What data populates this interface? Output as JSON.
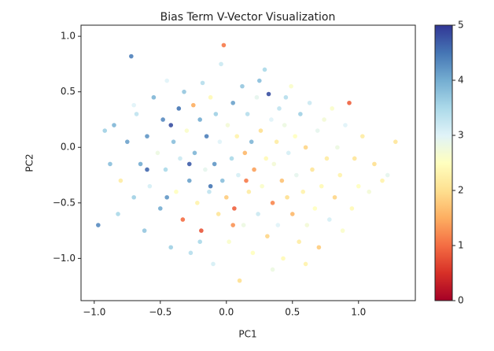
{
  "chart_data": {
    "type": "scatter",
    "title": "Bias Term V-Vector Visualization",
    "x_label": "PC1",
    "y_label": "PC2",
    "xlim": [
      -1.1,
      1.43
    ],
    "ylim": [
      -1.38,
      1.1
    ],
    "xticks": [
      {
        "value": -1.0,
        "label": "−1.0"
      },
      {
        "value": -0.5,
        "label": "−0.5"
      },
      {
        "value": 0,
        "label": "0.0"
      },
      0.5,
      {
        "value": 1.0,
        "label": "1.0"
      }
    ],
    "yticks": [
      {
        "value": -1.0,
        "label": "−1.0"
      },
      {
        "value": -0.5,
        "label": "−0.5"
      },
      {
        "value": 0,
        "label": "0.0"
      },
      0.5,
      {
        "value": 1.0,
        "label": "1.0"
      }
    ],
    "colormap": [
      "#a50026",
      "#d73027",
      "#f46d43",
      "#fdae61",
      "#fee090",
      "#ffffbf",
      "#e0f3f8",
      "#abd9e9",
      "#74add1",
      "#4575b4",
      "#313695"
    ],
    "clim": [
      0,
      5
    ],
    "cticks": [
      0,
      1,
      2,
      3,
      4,
      5
    ],
    "x": [
      -0.97,
      -0.88,
      -0.85,
      -0.82,
      -0.8,
      -0.75,
      -0.72,
      -0.7,
      -0.68,
      -0.65,
      -0.62,
      -0.6,
      -0.58,
      -0.55,
      -0.52,
      -0.5,
      -0.48,
      -0.46,
      -0.45,
      -0.42,
      -0.4,
      -0.38,
      -0.36,
      -0.35,
      -0.33,
      -0.32,
      -0.3,
      -0.28,
      -0.27,
      -0.25,
      -0.24,
      -0.22,
      -0.2,
      -0.19,
      -0.18,
      -0.16,
      -0.15,
      -0.13,
      -0.12,
      -0.1,
      -0.09,
      -0.08,
      -0.06,
      -0.05,
      -0.04,
      -0.03,
      -0.02,
      0.0,
      0.01,
      0.02,
      0.04,
      0.05,
      0.06,
      0.08,
      0.09,
      0.1,
      0.12,
      0.13,
      0.14,
      0.16,
      0.17,
      0.19,
      0.2,
      0.21,
      0.23,
      0.24,
      0.26,
      0.27,
      0.29,
      0.3,
      0.31,
      0.32,
      0.34,
      0.35,
      0.36,
      0.38,
      0.39,
      0.4,
      0.42,
      0.43,
      0.44,
      0.46,
      0.47,
      0.49,
      0.5,
      0.52,
      0.53,
      0.55,
      0.56,
      0.58,
      0.6,
      0.61,
      0.63,
      0.65,
      0.67,
      0.69,
      0.7,
      0.72,
      0.74,
      0.76,
      0.78,
      0.8,
      0.82,
      0.84,
      0.86,
      0.88,
      0.9,
      0.93,
      0.95,
      0.97,
      1.0,
      1.03,
      1.08,
      1.12,
      1.18,
      1.22,
      1.28,
      -0.92,
      -0.6,
      -0.42,
      -0.28,
      -0.12,
      0.15,
      0.05,
      -0.45,
      0.25,
      0.45,
      -0.7,
      0.35,
      -0.2,
      0.6
    ],
    "values": [
      -0.7,
      -0.15,
      0.2,
      -0.6,
      -0.3,
      0.05,
      0.82,
      -0.45,
      0.3,
      -0.15,
      -0.75,
      0.1,
      -0.35,
      0.45,
      -0.05,
      -0.55,
      0.25,
      -0.2,
      0.6,
      -0.9,
      0.05,
      -0.4,
      0.35,
      -0.1,
      -0.65,
      0.5,
      0.15,
      -0.3,
      -0.95,
      0.38,
      -0.05,
      -0.5,
      0.25,
      -0.75,
      0.58,
      -0.2,
      0.1,
      -0.4,
      0.45,
      -1.05,
      -0.15,
      0.3,
      -0.6,
      0.05,
      0.75,
      -0.3,
      0.92,
      -0.45,
      0.2,
      -0.85,
      -0.1,
      0.4,
      -0.55,
      0.1,
      -0.25,
      -1.2,
      0.55,
      -0.7,
      -0.05,
      0.3,
      -0.4,
      0.05,
      -0.95,
      -0.2,
      0.45,
      -0.6,
      0.15,
      -0.35,
      0.7,
      -0.1,
      -0.8,
      0.48,
      0.25,
      -0.5,
      -0.15,
      0.05,
      -0.7,
      0.35,
      -0.3,
      -1.0,
      0.2,
      -0.45,
      -0.05,
      0.55,
      -0.6,
      0.1,
      -0.25,
      -0.85,
      0.3,
      -0.4,
      0.0,
      -0.7,
      0.4,
      -0.2,
      -0.55,
      0.15,
      -0.9,
      -0.35,
      0.25,
      -0.1,
      -0.65,
      0.35,
      -0.45,
      0.0,
      -0.25,
      -0.75,
      0.2,
      0.4,
      -0.55,
      -0.1,
      -0.35,
      0.1,
      -0.4,
      -0.15,
      -0.3,
      -0.25,
      0.05,
      0.15,
      -0.2,
      0.2,
      -0.15,
      -0.35,
      -0.3,
      -0.7,
      -0.45,
      0.6,
      0.45,
      0.38,
      -1.1,
      -0.85,
      -1.05
    ],
    "color_values": [
      4.3,
      3.8,
      3.9,
      3.5,
      2.2,
      4.1,
      4.4,
      3.6,
      3.3,
      4.0,
      3.7,
      4.2,
      3.1,
      3.9,
      2.8,
      4.0,
      4.3,
      3.5,
      3.0,
      3.6,
      3.8,
      2.5,
      4.5,
      3.2,
      1.0,
      3.7,
      2.6,
      4.1,
      3.4,
      1.5,
      3.9,
      2.3,
      4.0,
      0.8,
      3.4,
      2.9,
      4.4,
      3.3,
      2.4,
      3.1,
      4.2,
      3.6,
      2.1,
      3.0,
      3.2,
      3.8,
      1.1,
      1.8,
      2.7,
      2.6,
      3.5,
      4.1,
      0.9,
      2.3,
      3.1,
      2.0,
      3.7,
      2.8,
      1.6,
      3.4,
      2.2,
      3.9,
      2.5,
      1.4,
      2.9,
      3.2,
      2.0,
      2.6,
      3.5,
      2.4,
      1.9,
      4.8,
      3.0,
      1.2,
      2.7,
      2.2,
      3.0,
      3.3,
      1.7,
      2.4,
      2.8,
      2.0,
      3.1,
      2.6,
      1.6,
      2.5,
      2.9,
      2.2,
      3.6,
      2.3,
      1.9,
      2.7,
      3.2,
      2.1,
      2.5,
      2.9,
      1.8,
      2.4,
      2.7,
      2.2,
      3.1,
      2.6,
      1.9,
      2.8,
      2.3,
      2.6,
      3.0,
      0.9,
      2.4,
      2.1,
      2.5,
      2.2,
      2.7,
      2.0,
      2.3,
      2.9,
      2.1,
      3.6,
      4.6,
      4.8,
      4.7,
      4.5,
      1.1,
      1.3,
      4.2,
      3.8,
      3.4,
      3.0,
      2.8,
      3.5,
      2.3
    ]
  }
}
